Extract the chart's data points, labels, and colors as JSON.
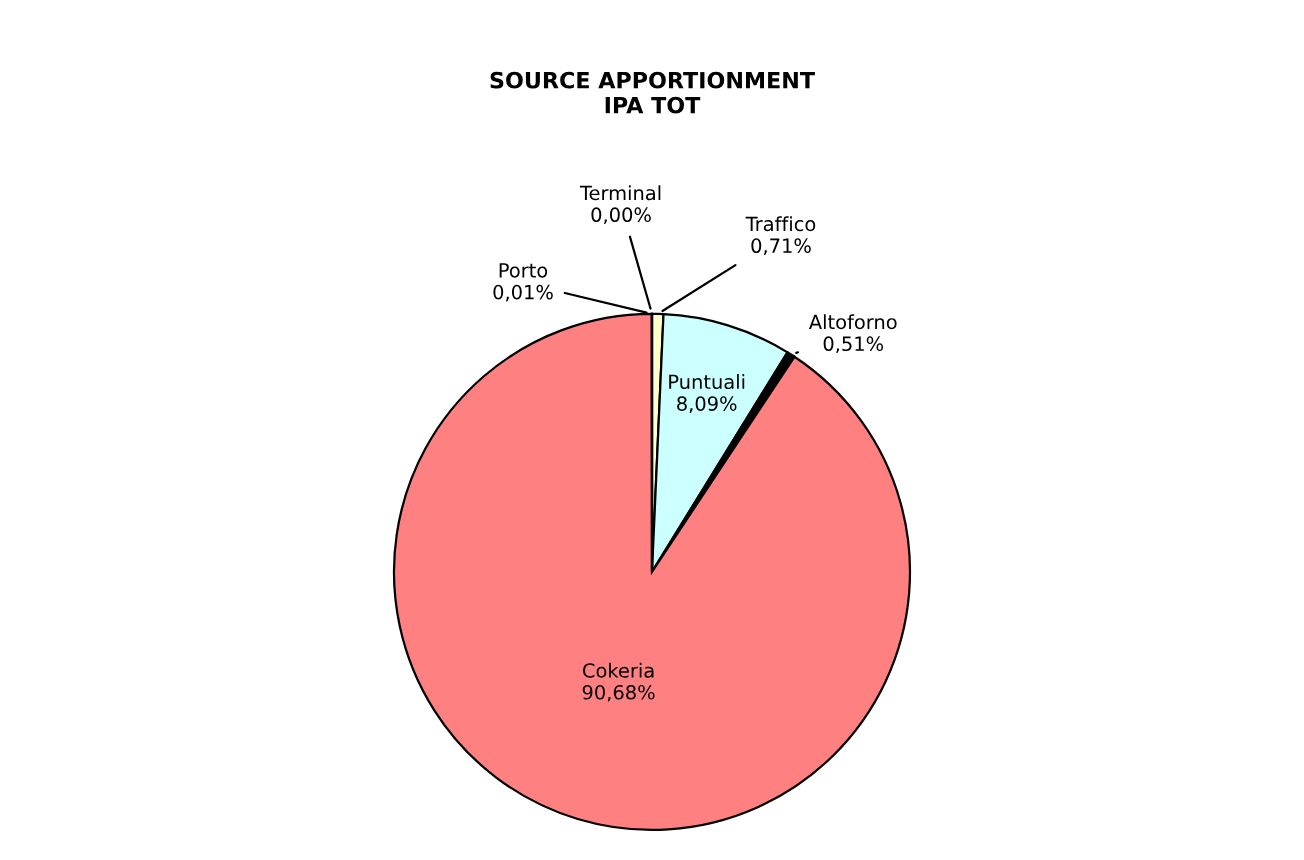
{
  "chart_data": {
    "type": "pie",
    "title": "SOURCE APPORTIONMENT\nIPA TOT",
    "categories": [
      "Traffico",
      "Puntuali",
      "Altoforno",
      "Cokeria",
      "Porto",
      "Terminal"
    ],
    "values": [
      0.71,
      8.09,
      0.51,
      90.68,
      0.01,
      0.0
    ],
    "value_labels": [
      "0,71%",
      "8,09%",
      "0,51%",
      "90,68%",
      "0,01%",
      "0,00%"
    ],
    "colors": [
      "#ffffcc",
      "#ccffff",
      "#000000",
      "#ff8080",
      "#993366",
      "#ffffff"
    ]
  }
}
